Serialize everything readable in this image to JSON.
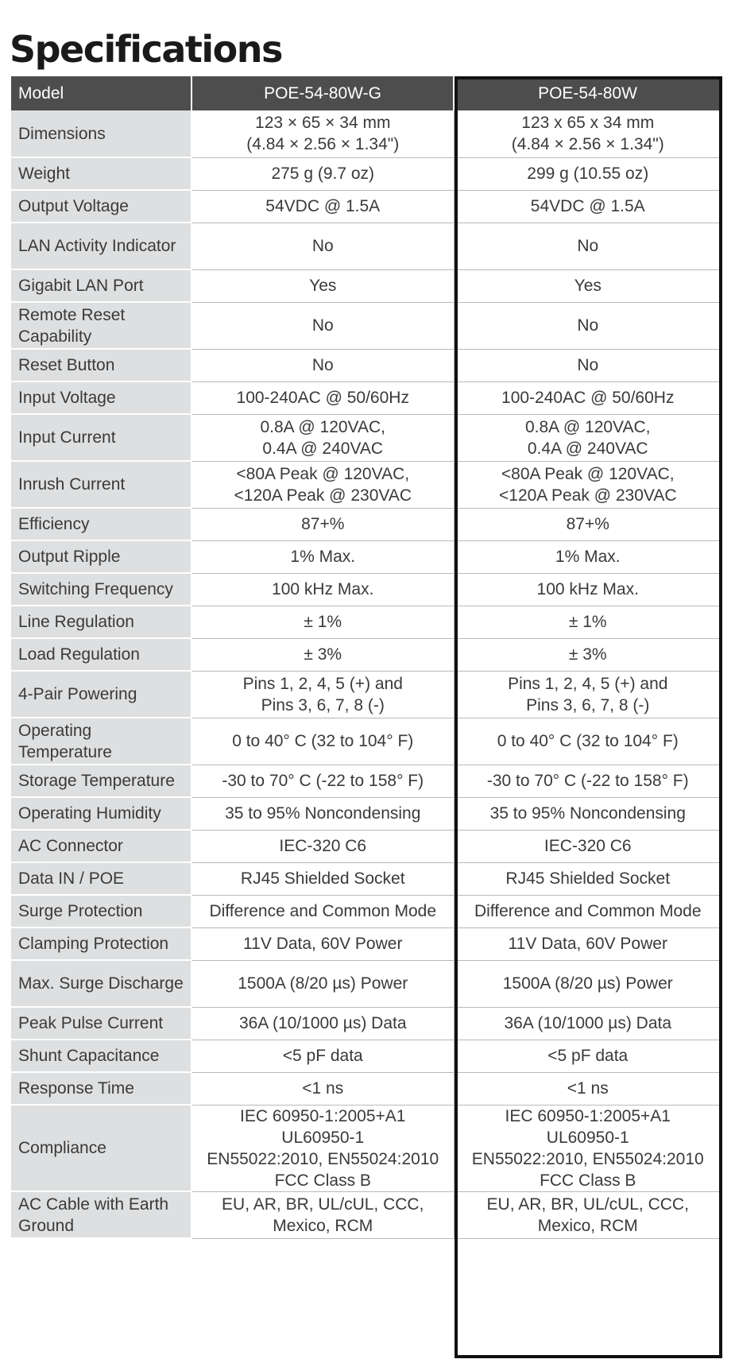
{
  "page": {
    "title": "Specifications"
  },
  "table": {
    "header": {
      "label": "Model",
      "models": [
        "POE-54-80W-G",
        "POE-54-80W"
      ]
    },
    "rows": [
      {
        "label": "Dimensions",
        "values": [
          "123 × 65 × 34 mm\n(4.84 × 2.56 × 1.34\")",
          "123 x 65 x 34 mm\n(4.84 × 2.56 × 1.34\")"
        ]
      },
      {
        "label": "Weight",
        "values": [
          "275 g (9.7 oz)",
          "299 g (10.55 oz)"
        ]
      },
      {
        "label": "Output Voltage",
        "values": [
          "54VDC @ 1.5A",
          "54VDC @ 1.5A"
        ]
      },
      {
        "label": "LAN Activity Indicator",
        "values": [
          "No",
          "No"
        ]
      },
      {
        "label": "Gigabit LAN Port",
        "values": [
          "Yes",
          "Yes"
        ]
      },
      {
        "label": "Remote Reset Capability",
        "values": [
          "No",
          "No"
        ]
      },
      {
        "label": "Reset Button",
        "values": [
          "No",
          "No"
        ]
      },
      {
        "label": "Input Voltage",
        "values": [
          "100-240AC @ 50/60Hz",
          "100-240AC @ 50/60Hz"
        ]
      },
      {
        "label": "Input Current",
        "values": [
          "0.8A @ 120VAC,\n0.4A @ 240VAC",
          "0.8A @ 120VAC,\n0.4A @ 240VAC"
        ]
      },
      {
        "label": "Inrush Current",
        "values": [
          "<80A Peak @ 120VAC,\n<120A Peak @ 230VAC",
          "<80A Peak @ 120VAC,\n<120A Peak @ 230VAC"
        ]
      },
      {
        "label": "Efficiency",
        "values": [
          "87+%",
          "87+%"
        ]
      },
      {
        "label": "Output Ripple",
        "values": [
          "1% Max.",
          "1% Max."
        ]
      },
      {
        "label": "Switching Frequency",
        "values": [
          "100 kHz Max.",
          "100 kHz Max."
        ]
      },
      {
        "label": "Line Regulation",
        "values": [
          "± 1%",
          "± 1%"
        ]
      },
      {
        "label": "Load Regulation",
        "values": [
          "± 3%",
          "± 3%"
        ]
      },
      {
        "label": "4-Pair Powering",
        "values": [
          "Pins 1, 2, 4, 5 (+) and\nPins 3, 6, 7, 8 (-)",
          "Pins 1, 2, 4, 5 (+) and\nPins 3, 6, 7, 8 (-)"
        ]
      },
      {
        "label": "Operating Temperature",
        "values": [
          "0 to 40° C (32 to 104° F)",
          "0 to 40° C (32 to 104° F)"
        ]
      },
      {
        "label": "Storage Temperature",
        "values": [
          "-30 to 70° C (-22 to 158° F)",
          "-30 to 70° C (-22 to 158° F)"
        ]
      },
      {
        "label": "Operating Humidity",
        "values": [
          "35 to 95% Noncondensing",
          "35 to 95% Noncondensing"
        ]
      },
      {
        "label": "AC Connector",
        "values": [
          "IEC-320 C6",
          "IEC-320 C6"
        ]
      },
      {
        "label": "Data IN / POE",
        "values": [
          "RJ45 Shielded Socket",
          "RJ45 Shielded Socket"
        ]
      },
      {
        "label": "Surge Protection",
        "values": [
          "Difference and Common Mode",
          "Difference and Common Mode"
        ]
      },
      {
        "label": "Clamping Protection",
        "values": [
          "11V Data, 60V Power",
          "11V Data, 60V Power"
        ]
      },
      {
        "label": "Max. Surge Discharge",
        "values": [
          "1500A (8/20 µs) Power",
          "1500A (8/20 µs) Power"
        ]
      },
      {
        "label": "Peak Pulse Current",
        "values": [
          "36A (10/1000 µs) Data",
          "36A (10/1000 µs) Data"
        ]
      },
      {
        "label": "Shunt Capacitance",
        "values": [
          "<5 pF data",
          "<5 pF data"
        ]
      },
      {
        "label": "Response Time",
        "values": [
          "<1 ns",
          "<1 ns"
        ]
      },
      {
        "label": "Compliance",
        "values": [
          "IEC 60950-1:2005+A1\nUL60950-1\nEN55022:2010, EN55024:2010\nFCC Class B",
          "IEC 60950-1:2005+A1\nUL60950-1\nEN55022:2010, EN55024:2010\nFCC Class B"
        ]
      },
      {
        "label": "AC Cable with Earth Ground",
        "values": [
          "EU, AR, BR, UL/cUL, CCC,\nMexico, RCM",
          "EU, AR, BR, UL/cUL, CCC,\nMexico, RCM"
        ]
      }
    ]
  }
}
